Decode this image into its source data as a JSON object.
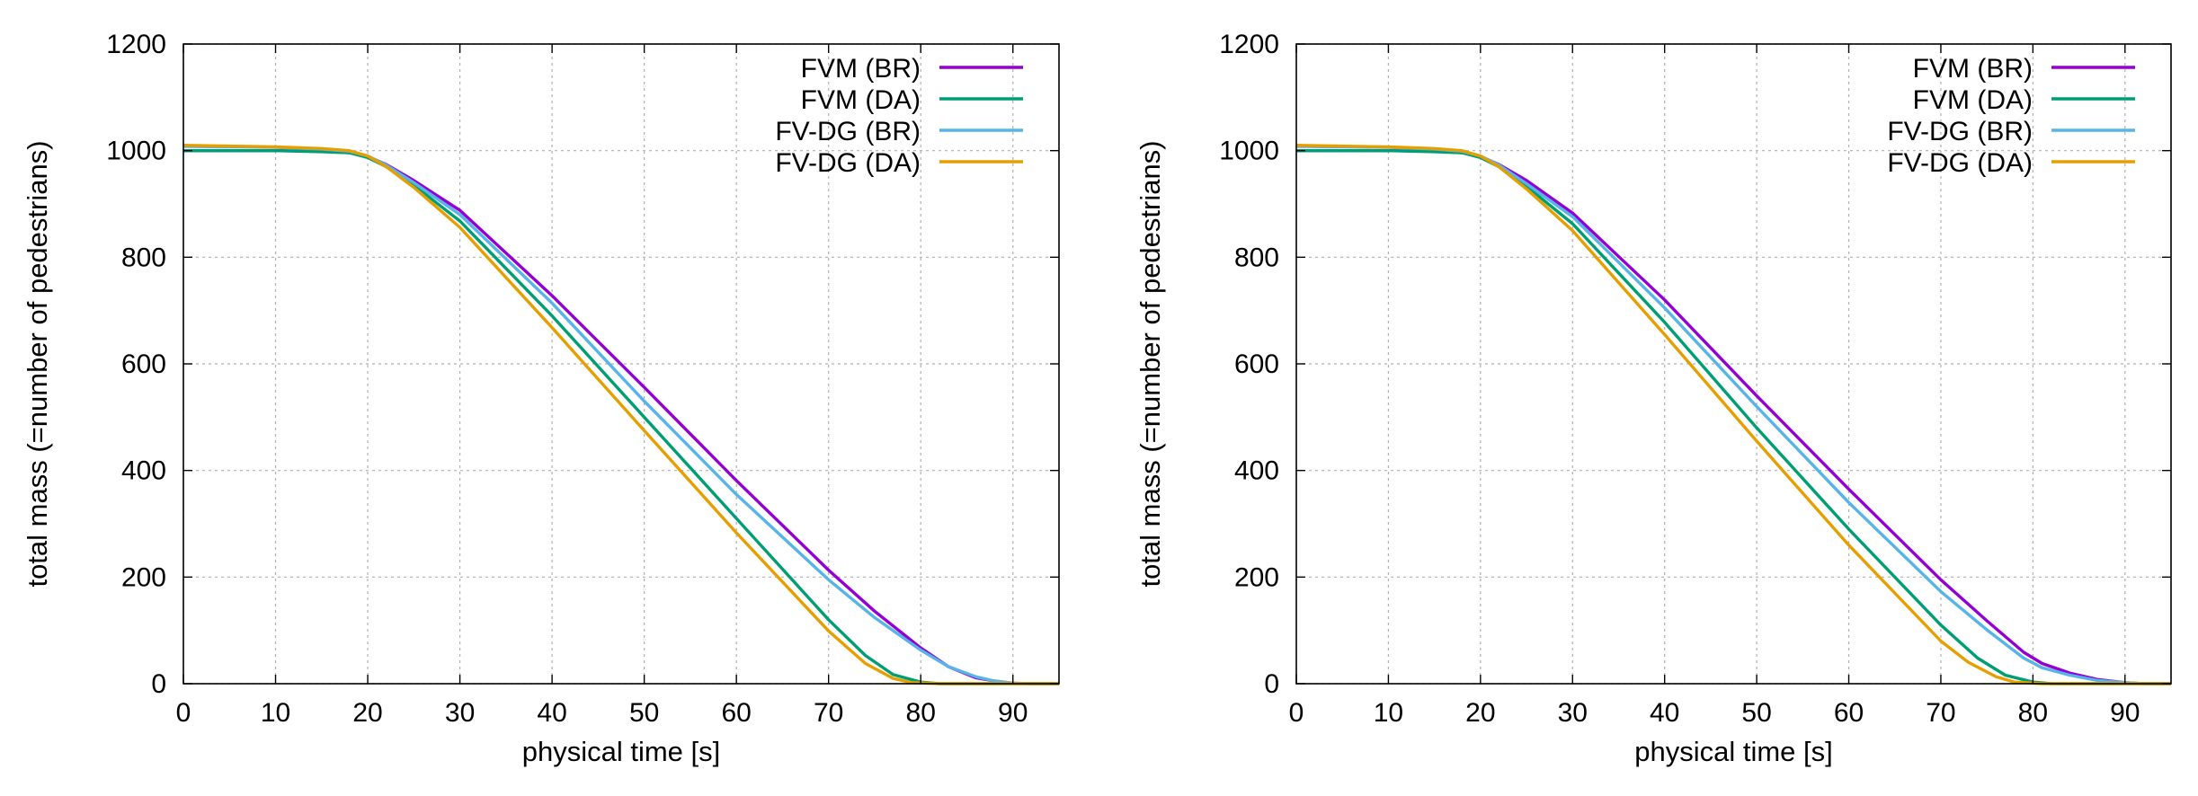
{
  "chart_data": [
    {
      "type": "line",
      "title": "",
      "xlabel": "physical time [s]",
      "ylabel": "total mass (=number of pedestrians)",
      "xlim": [
        0,
        95
      ],
      "ylim": [
        0,
        1200
      ],
      "xticks": [
        "0",
        "10",
        "20",
        "30",
        "40",
        "50",
        "60",
        "70",
        "80",
        "90"
      ],
      "yticks": [
        "0",
        "200",
        "400",
        "600",
        "800",
        "1000",
        "1200"
      ],
      "grid": true,
      "legend_position": "top-right",
      "series": [
        {
          "name": "FVM (BR)",
          "color": "#9400d3",
          "x": [
            0,
            10,
            15,
            18,
            20,
            22,
            25,
            30,
            40,
            50,
            60,
            70,
            75,
            80,
            83,
            86,
            88,
            90,
            92,
            95
          ],
          "y": [
            1000,
            1000,
            999,
            996,
            989,
            974,
            944,
            888,
            728,
            556,
            381,
            213,
            136,
            67,
            32,
            11,
            5,
            1,
            0,
            0
          ]
        },
        {
          "name": "FVM (DA)",
          "color": "#009e73",
          "x": [
            0,
            10,
            15,
            18,
            20,
            22,
            25,
            30,
            40,
            50,
            60,
            70,
            74,
            77,
            80,
            82,
            85,
            90,
            95
          ],
          "y": [
            1000,
            1000,
            998,
            996,
            987,
            970,
            935,
            868,
            690,
            500,
            310,
            120,
            53,
            17,
            3,
            0,
            0,
            0,
            0
          ]
        },
        {
          "name": "FV-DG (BR)",
          "color": "#56b4e9",
          "x": [
            0,
            10,
            15,
            18,
            20,
            22,
            25,
            30,
            40,
            50,
            60,
            70,
            75,
            80,
            83,
            86,
            88,
            90,
            92,
            95
          ],
          "y": [
            1008,
            1006,
            1003,
            999,
            990,
            973,
            940,
            880,
            714,
            530,
            355,
            195,
            124,
            63,
            32,
            13,
            5,
            1,
            0,
            0
          ]
        },
        {
          "name": "FV-DG (DA)",
          "color": "#e69f00",
          "x": [
            0,
            10,
            15,
            18,
            20,
            22,
            25,
            30,
            40,
            50,
            60,
            70,
            74,
            77,
            79,
            82,
            85,
            90,
            95
          ],
          "y": [
            1010,
            1007,
            1004,
            1000,
            990,
            970,
            931,
            856,
            668,
            475,
            283,
            99,
            38,
            10,
            2,
            0,
            0,
            0,
            0
          ]
        }
      ]
    },
    {
      "type": "line",
      "title": "",
      "xlabel": "physical time [s]",
      "ylabel": "total mass (=number of pedestrians)",
      "xlim": [
        0,
        95
      ],
      "ylim": [
        0,
        1200
      ],
      "xticks": [
        "0",
        "10",
        "20",
        "30",
        "40",
        "50",
        "60",
        "70",
        "80",
        "90"
      ],
      "yticks": [
        "0",
        "200",
        "400",
        "600",
        "800",
        "1000",
        "1200"
      ],
      "grid": true,
      "legend_position": "top-right",
      "series": [
        {
          "name": "FVM (BR)",
          "color": "#9400d3",
          "x": [
            0,
            10,
            15,
            18,
            20,
            22,
            25,
            30,
            40,
            50,
            60,
            70,
            75,
            79,
            81,
            84,
            87,
            90,
            92,
            95
          ],
          "y": [
            1000,
            1000,
            999,
            996,
            989,
            974,
            944,
            883,
            720,
            540,
            365,
            195,
            118,
            59,
            38,
            20,
            8,
            2,
            0,
            0
          ]
        },
        {
          "name": "FVM (DA)",
          "color": "#009e73",
          "x": [
            0,
            10,
            15,
            18,
            20,
            22,
            25,
            30,
            40,
            50,
            60,
            70,
            74,
            77,
            80,
            82,
            85,
            90,
            95
          ],
          "y": [
            1000,
            1000,
            998,
            996,
            987,
            970,
            933,
            863,
            678,
            480,
            290,
            110,
            48,
            16,
            3,
            0,
            0,
            0,
            0
          ]
        },
        {
          "name": "FV-DG (BR)",
          "color": "#56b4e9",
          "x": [
            0,
            10,
            15,
            18,
            20,
            22,
            25,
            30,
            40,
            50,
            60,
            70,
            75,
            79,
            81,
            84,
            87,
            90,
            92,
            95
          ],
          "y": [
            1008,
            1006,
            1003,
            999,
            990,
            973,
            938,
            876,
            705,
            520,
            340,
            173,
            101,
            48,
            30,
            16,
            6,
            2,
            0,
            0
          ]
        },
        {
          "name": "FV-DG (DA)",
          "color": "#e69f00",
          "x": [
            0,
            10,
            15,
            18,
            20,
            22,
            25,
            30,
            40,
            50,
            60,
            70,
            73,
            76,
            78,
            81,
            85,
            90,
            95
          ],
          "y": [
            1010,
            1007,
            1004,
            1000,
            990,
            970,
            928,
            850,
            655,
            455,
            260,
            80,
            40,
            13,
            3,
            0,
            0,
            0,
            0
          ]
        }
      ]
    }
  ]
}
